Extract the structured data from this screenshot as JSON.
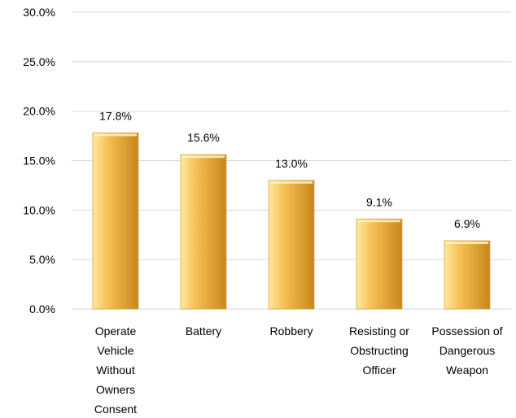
{
  "chart_data": {
    "type": "bar",
    "categories": [
      "Operate Vehicle Without Owners Consent",
      "Battery",
      "Robbery",
      "Resisting or Obstructing Officer",
      "Possession of Dangerous Weapon"
    ],
    "category_label_lines": [
      [
        "Operate",
        "Vehicle",
        "Without",
        "Owners",
        "Consent"
      ],
      [
        "Battery"
      ],
      [
        "Robbery"
      ],
      [
        "Resisting or",
        "Obstructing",
        "Officer"
      ],
      [
        "Possession of",
        "Dangerous",
        "Weapon"
      ]
    ],
    "values": [
      17.8,
      15.6,
      13.0,
      9.1,
      6.9
    ],
    "data_labels": [
      "17.8%",
      "15.6%",
      "13.0%",
      "9.1%",
      "6.9%"
    ],
    "y_ticks": [
      0,
      5,
      10,
      15,
      20,
      25,
      30
    ],
    "y_tick_labels": [
      "0.0%",
      "5.0%",
      "10.0%",
      "15.0%",
      "20.0%",
      "25.0%",
      "30.0%"
    ],
    "ylim": [
      0,
      30
    ],
    "grid": true,
    "legend": "none",
    "colors": {
      "bar_light": "#fde9a0",
      "bar_mid": "#f5bf52",
      "bar_dark": "#c8861a",
      "grid": "#d9d9d9"
    }
  }
}
